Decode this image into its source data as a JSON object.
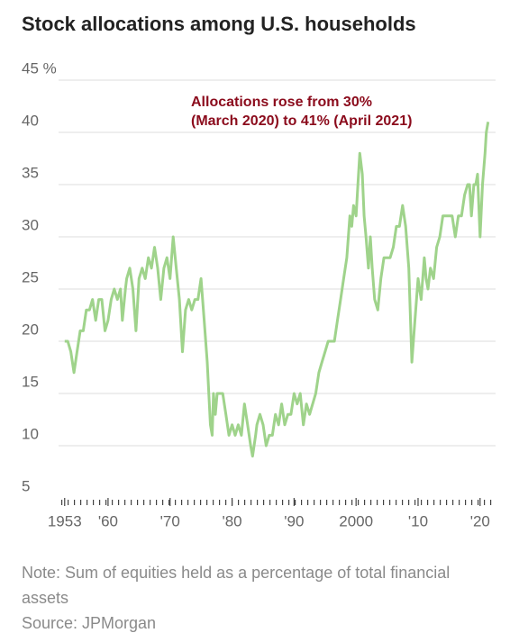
{
  "chart_data": {
    "type": "line",
    "title": "Stock allocations among U.S. households",
    "annotation": [
      "Allocations rose from 30%",
      "(March 2020) to 41% (April 2021)"
    ],
    "note": "Note: Sum of equities held as a percentage of total financial assets",
    "source": "Source: JPMorgan",
    "color": "#9fd38b",
    "grid": true,
    "xlim": [
      1951,
      2022.5
    ],
    "ylim": [
      5,
      45
    ],
    "yticks": [
      5,
      10,
      15,
      20,
      25,
      30,
      35,
      40,
      {
        "value": 45,
        "label": "45 %"
      }
    ],
    "xticks": [
      1953,
      {
        "value": 1960,
        "label": "'60"
      },
      {
        "value": 1970,
        "label": "'70"
      },
      {
        "value": 1980,
        "label": "'80"
      },
      {
        "value": 1990,
        "label": "'90"
      },
      2000,
      {
        "value": 2010,
        "label": "'10"
      },
      {
        "value": 2020,
        "label": "'20"
      }
    ],
    "x": [
      1953,
      1953.5,
      1954,
      1954.5,
      1955,
      1955.5,
      1956,
      1956.5,
      1957,
      1957.5,
      1958,
      1958.5,
      1959,
      1959.5,
      1960,
      1960.5,
      1961,
      1961.5,
      1962,
      1962.3,
      1962.8,
      1963,
      1963.5,
      1964,
      1964.5,
      1965,
      1965.5,
      1966,
      1966.5,
      1967,
      1967.5,
      1968,
      1968.5,
      1969,
      1969.5,
      1970,
      1970.5,
      1971,
      1971.5,
      1972,
      1972.5,
      1973,
      1973.5,
      1974,
      1974.5,
      1975,
      1975.5,
      1976,
      1976.5,
      1976.8,
      1977,
      1977.3,
      1977.6,
      1978,
      1978.5,
      1979,
      1979.5,
      1980,
      1980.5,
      1981,
      1981.5,
      1982,
      1982.5,
      1983,
      1983.3,
      1983.8,
      1984,
      1984.5,
      1985,
      1985.5,
      1986,
      1986.5,
      1987,
      1987.5,
      1988,
      1988.5,
      1989,
      1989.5,
      1990,
      1990.5,
      1991,
      1991.5,
      1992,
      1992.5,
      1993,
      1993.5,
      1994,
      1994.5,
      1995,
      1995.5,
      1996,
      1996.5,
      1997,
      1997.5,
      1998,
      1998.5,
      1999,
      1999.3,
      1999.6,
      2000,
      2000.3,
      2000.6,
      2001,
      2001.3,
      2001.6,
      2002,
      2002.3,
      2002.6,
      2003,
      2003.5,
      2004,
      2004.5,
      2005,
      2005.5,
      2006,
      2006.5,
      2007,
      2007.5,
      2008,
      2008.5,
      2009,
      2009.5,
      2010,
      2010.5,
      2011,
      2011.3,
      2011.6,
      2012,
      2012.5,
      2013,
      2013.5,
      2014,
      2014.5,
      2015,
      2015.5,
      2016,
      2016.5,
      2017,
      2017.5,
      2018,
      2018.3,
      2018.6,
      2019,
      2019.3,
      2019.6,
      2020,
      2020.4,
      2020.8,
      2021,
      2021.3
    ],
    "values": [
      20,
      20,
      19,
      17,
      19,
      21,
      21,
      23,
      23,
      24,
      22,
      24,
      24,
      21,
      22,
      24,
      25,
      24,
      25,
      22,
      25,
      26,
      27,
      25,
      21,
      26,
      27,
      26,
      28,
      27,
      29,
      27,
      24,
      27,
      28,
      26,
      30,
      27,
      24,
      19,
      23,
      24,
      23,
      24,
      24,
      26,
      22,
      18,
      12,
      11,
      15,
      13,
      15,
      15,
      15,
      13,
      11,
      12,
      11,
      12,
      11,
      14,
      12,
      10,
      9,
      11,
      12,
      13,
      12,
      10,
      11,
      11,
      13,
      12,
      14,
      12,
      13,
      13,
      15,
      14,
      15,
      12,
      14,
      13,
      14,
      15,
      17,
      18,
      19,
      20,
      20,
      20,
      22,
      24,
      26,
      28,
      32,
      31,
      33,
      32,
      35,
      38,
      36,
      32,
      30,
      27,
      30,
      27,
      24,
      23,
      26,
      28,
      28,
      28,
      29,
      31,
      31,
      33,
      31,
      27,
      18,
      22,
      26,
      24,
      28,
      26,
      25,
      27,
      26,
      29,
      30,
      32,
      32,
      32,
      32,
      30,
      32,
      32,
      34,
      35,
      35,
      32,
      35,
      35,
      36,
      30,
      35,
      38,
      40,
      41
    ]
  }
}
